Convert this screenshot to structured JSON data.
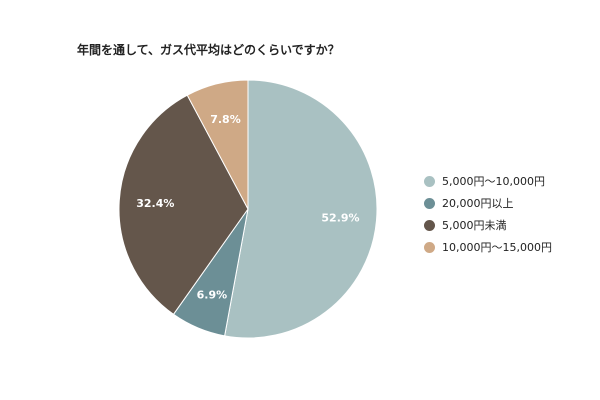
{
  "chart_data": {
    "type": "pie",
    "title": "年間を通して、ガス代平均はどのくらいですか？",
    "categories": [
      "5,000円〜10,000円",
      "20,000円以上",
      "5,000円未満",
      "10,000円〜15,000円"
    ],
    "values": [
      52.9,
      6.9,
      32.4,
      7.8
    ],
    "value_labels": [
      "52.9%",
      "6.9%",
      "32.4%",
      "7.8%"
    ],
    "colors": [
      "#a9c1c2",
      "#6c8f96",
      "#64564b",
      "#cfa986"
    ],
    "start_angle_deg": 0,
    "direction": "clockwise",
    "legend_position": "right"
  }
}
